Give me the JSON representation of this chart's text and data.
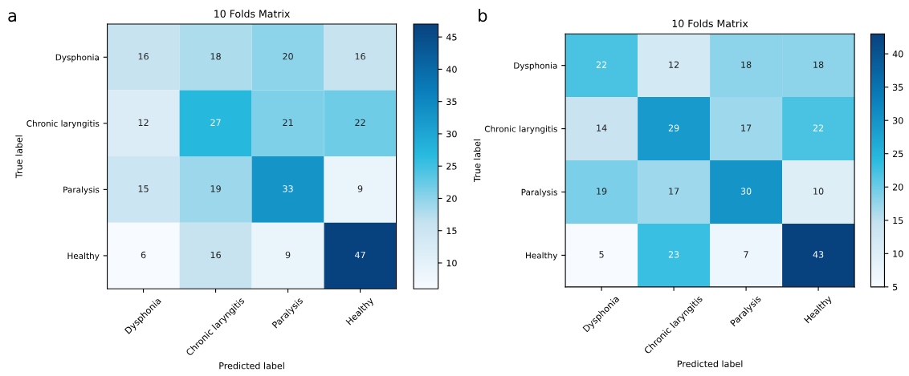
{
  "chart_data": [
    {
      "type": "heatmap",
      "title": "10 Folds Matrix",
      "xlabel": "Predicted label",
      "ylabel": "True label",
      "annotations": [
        "a"
      ],
      "categories": [
        "Dysphonia",
        "Chronic laryngitis",
        "Paralysis",
        "Healthy"
      ],
      "y_categories": [
        "Dysphonia",
        "Chronic laryngitis",
        "Paralysis",
        "Healthy"
      ],
      "cells": [
        [
          16,
          18,
          20,
          16
        ],
        [
          12,
          27,
          21,
          22
        ],
        [
          15,
          19,
          33,
          9
        ],
        [
          6,
          16,
          9,
          47
        ]
      ],
      "data_labels": true,
      "clim": [
        6,
        47
      ],
      "cticks": [
        10,
        15,
        20,
        25,
        30,
        35,
        40,
        45
      ],
      "colors": [
        "#f7fbff",
        "#c6e2f0",
        "#29bbe0",
        "#0a7dbb",
        "#08427e"
      ]
    },
    {
      "type": "heatmap",
      "title": "10 Folds Matrix",
      "xlabel": "Predicted label",
      "ylabel": "True label",
      "annotations": [
        "b"
      ],
      "categories": [
        "Dysphonia",
        "Chronic laryngitis",
        "Paralysis",
        "Healthy"
      ],
      "y_categories": [
        "Dysphonia",
        "Chronic laryngitis",
        "Paralysis",
        "Healthy"
      ],
      "cells": [
        [
          22,
          12,
          18,
          18
        ],
        [
          14,
          29,
          17,
          22
        ],
        [
          19,
          17,
          30,
          10
        ],
        [
          5,
          23,
          7,
          43
        ]
      ],
      "data_labels": true,
      "clim": [
        5,
        43
      ],
      "cticks": [
        5,
        10,
        15,
        20,
        25,
        30,
        35,
        40
      ],
      "colors": [
        "#f7fbff",
        "#c6e2f0",
        "#29bbe0",
        "#0a7dbb",
        "#08427e"
      ]
    }
  ]
}
